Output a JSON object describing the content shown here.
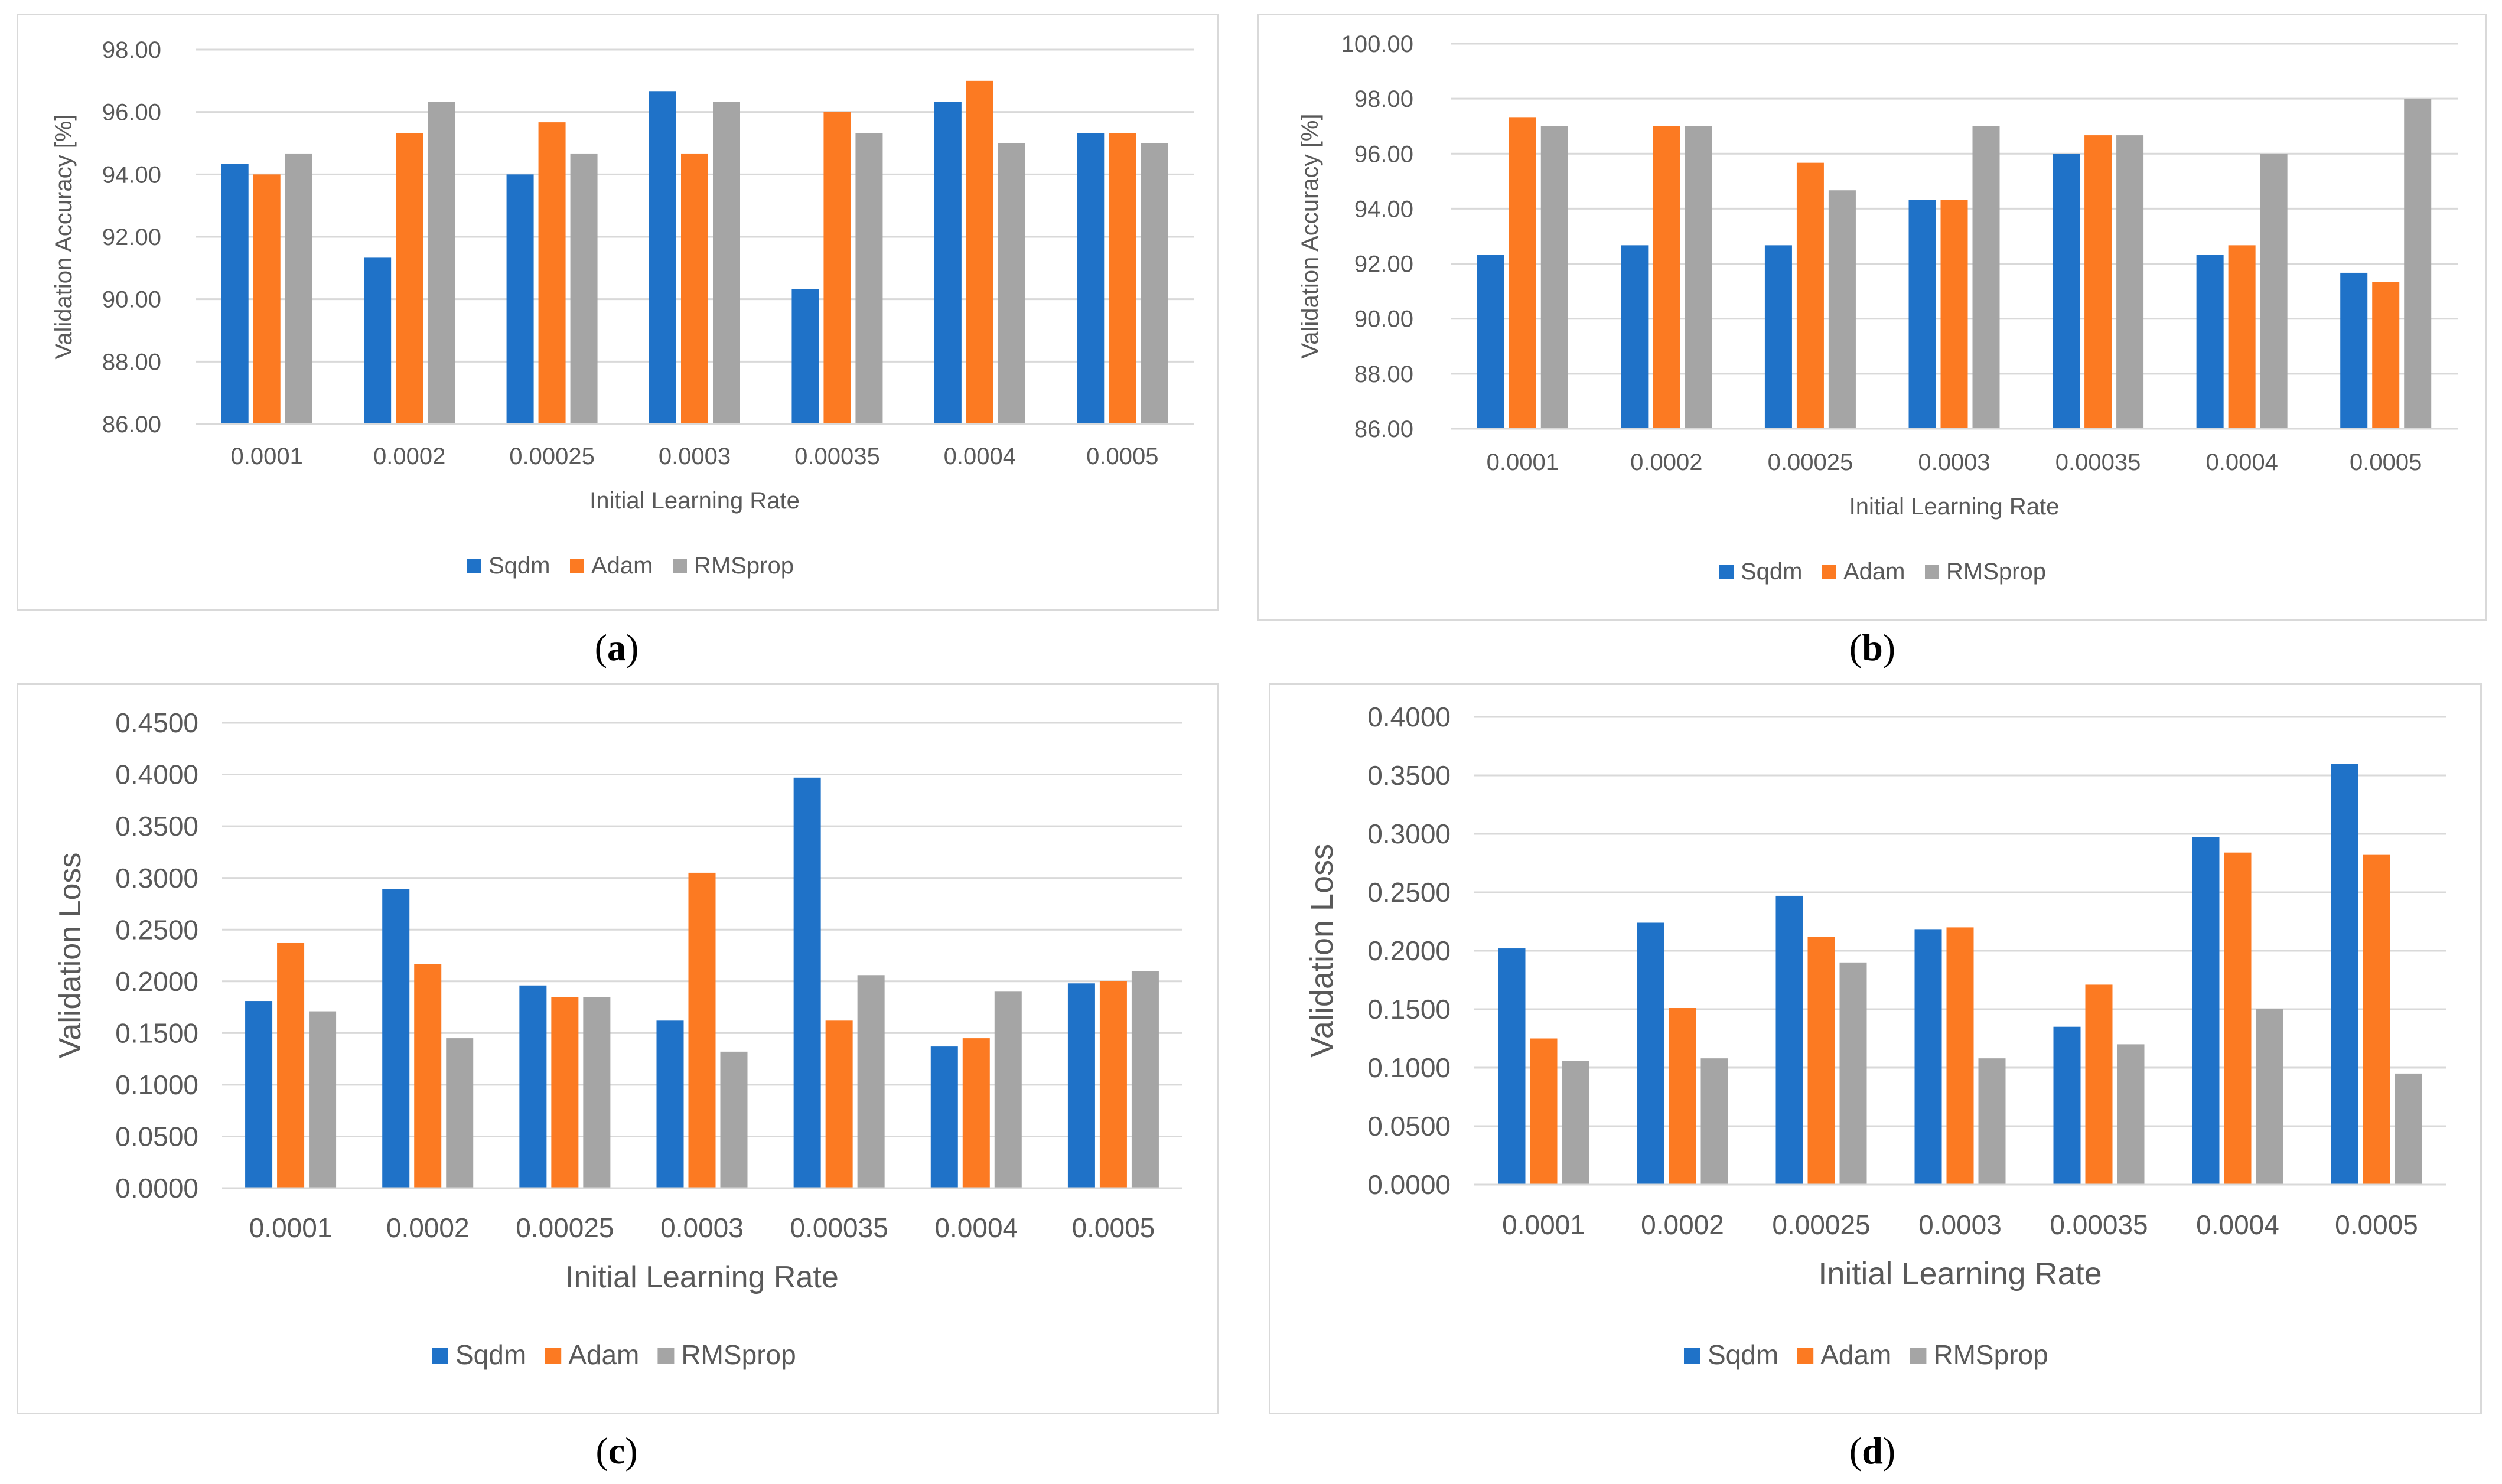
{
  "colors": {
    "Sqdm": "#1f72c8",
    "Adam": "#fc7a22",
    "RMSprop": "#a5a5a5",
    "grid": "#d9d9d9",
    "text": "#595959"
  },
  "charts": [
    {
      "id": "a",
      "caption": "a",
      "chart_data": {
        "type": "bar",
        "title": "",
        "xlabel": "Initial Learning Rate",
        "ylabel": "Validation Accuracy [%]",
        "ylim": [
          86,
          98
        ],
        "yticks": [
          "86.00",
          "88.00",
          "90.00",
          "92.00",
          "94.00",
          "96.00",
          "98.00"
        ],
        "categories": [
          "0.0001",
          "0.0002",
          "0.00025",
          "0.0003",
          "0.00035",
          "0.0004",
          "0.0005"
        ],
        "series": [
          {
            "name": "Sqdm",
            "values": [
              94.33,
              91.33,
              94.0,
              96.67,
              90.33,
              96.33,
              95.33
            ]
          },
          {
            "name": "Adam",
            "values": [
              94.0,
              95.33,
              95.67,
              94.67,
              96.0,
              97.0,
              95.33
            ]
          },
          {
            "name": "RMSprop",
            "values": [
              94.67,
              96.33,
              94.67,
              96.33,
              95.33,
              95.0,
              95.0
            ]
          }
        ],
        "legend": "bottom",
        "grid": true
      }
    },
    {
      "id": "b",
      "caption": "b",
      "chart_data": {
        "type": "bar",
        "title": "",
        "xlabel": "Initial Learning Rate",
        "ylabel": "Validation Accuracy [%]",
        "ylim": [
          86,
          100
        ],
        "yticks": [
          "86.00",
          "88.00",
          "90.00",
          "92.00",
          "94.00",
          "96.00",
          "98.00",
          "100.00"
        ],
        "categories": [
          "0.0001",
          "0.0002",
          "0.00025",
          "0.0003",
          "0.00035",
          "0.0004",
          "0.0005"
        ],
        "series": [
          {
            "name": "Sqdm",
            "values": [
              92.33,
              92.67,
              92.67,
              94.33,
              96.0,
              92.33,
              91.67
            ]
          },
          {
            "name": "Adam",
            "values": [
              97.33,
              97.0,
              95.67,
              94.33,
              96.67,
              92.67,
              91.33
            ]
          },
          {
            "name": "RMSprop",
            "values": [
              97.0,
              97.0,
              94.67,
              97.0,
              96.67,
              96.0,
              98.0
            ]
          }
        ],
        "legend": "bottom",
        "grid": true
      }
    },
    {
      "id": "c",
      "caption": "c",
      "chart_data": {
        "type": "bar",
        "title": "",
        "xlabel": "Initial Learning Rate",
        "ylabel": "Validation Loss",
        "ylim": [
          0,
          0.45
        ],
        "yticks": [
          "0.0000",
          "0.0500",
          "0.1000",
          "0.1500",
          "0.2000",
          "0.2500",
          "0.3000",
          "0.3500",
          "0.4000",
          "0.4500"
        ],
        "categories": [
          "0.0001",
          "0.0002",
          "0.00025",
          "0.0003",
          "0.00035",
          "0.0004",
          "0.0005"
        ],
        "series": [
          {
            "name": "Sqdm",
            "values": [
              0.181,
              0.289,
              0.196,
              0.162,
              0.397,
              0.137,
              0.198
            ]
          },
          {
            "name": "Adam",
            "values": [
              0.237,
              0.217,
              0.185,
              0.305,
              0.162,
              0.145,
              0.2
            ]
          },
          {
            "name": "RMSprop",
            "values": [
              0.171,
              0.145,
              0.185,
              0.132,
              0.206,
              0.19,
              0.21
            ]
          }
        ],
        "legend": "bottom",
        "grid": true
      }
    },
    {
      "id": "d",
      "caption": "d",
      "chart_data": {
        "type": "bar",
        "title": "",
        "xlabel": "Initial Learning Rate",
        "ylabel": "Validation Loss",
        "ylim": [
          0,
          0.4
        ],
        "yticks": [
          "0.0000",
          "0.0500",
          "0.1000",
          "0.1500",
          "0.2000",
          "0.2500",
          "0.3000",
          "0.3500",
          "0.4000"
        ],
        "categories": [
          "0.0001",
          "0.0002",
          "0.00025",
          "0.0003",
          "0.00035",
          "0.0004",
          "0.0005"
        ],
        "series": [
          {
            "name": "Sqdm",
            "values": [
              0.202,
              0.224,
              0.247,
              0.218,
              0.135,
              0.297,
              0.36
            ]
          },
          {
            "name": "Adam",
            "values": [
              0.125,
              0.151,
              0.212,
              0.22,
              0.171,
              0.284,
              0.282
            ]
          },
          {
            "name": "RMSprop",
            "values": [
              0.106,
              0.108,
              0.19,
              0.108,
              0.12,
              0.15,
              0.095
            ]
          }
        ],
        "legend": "bottom",
        "grid": true
      }
    }
  ]
}
